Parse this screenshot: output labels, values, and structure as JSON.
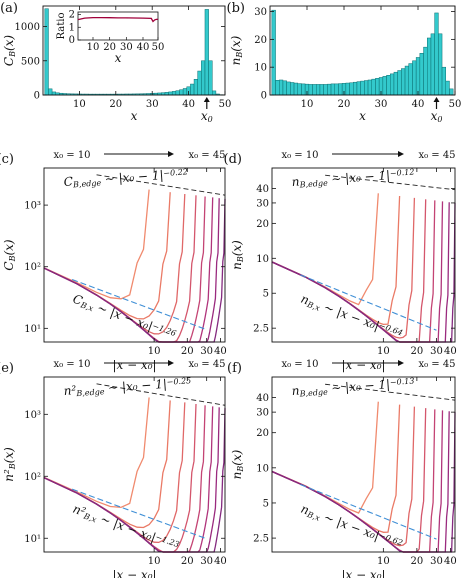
{
  "colors": {
    "bar_fill": "#33c9cc",
    "bar_stroke": "#0a6e70",
    "ratio_line": "#a0003a",
    "fit_line": "#3f8fd6",
    "edge_fit_line": "#222222",
    "curve_colors": [
      "#f08a6e",
      "#ea7a66",
      "#e06868",
      "#d4566c",
      "#c44474",
      "#b0347b",
      "#9a2a7e",
      "#842a7f"
    ]
  },
  "arrow_text": {
    "from": "x₀ = 10",
    "to": "x₀ = 45"
  },
  "chart_data": [
    {
      "panel": "(a)",
      "type": "bar",
      "ylabel": "C_B(x)",
      "xlabel": "x",
      "xlim": [
        0,
        50
      ],
      "ylim": [
        0,
        1300
      ],
      "xticks": [
        10,
        20,
        30,
        40,
        50
      ],
      "yticks": [
        0,
        500,
        1000
      ],
      "marker_label": "x₀",
      "marker_x": 45,
      "x": [
        1,
        2,
        3,
        4,
        5,
        6,
        7,
        8,
        9,
        10,
        11,
        12,
        13,
        14,
        15,
        16,
        17,
        18,
        19,
        20,
        21,
        22,
        23,
        24,
        25,
        26,
        27,
        28,
        29,
        30,
        31,
        32,
        33,
        34,
        35,
        36,
        37,
        38,
        39,
        40,
        41,
        42,
        43,
        44,
        45,
        46,
        47,
        48,
        49
      ],
      "values": [
        1260,
        90,
        45,
        32,
        26,
        22,
        19,
        17,
        16,
        15,
        14,
        14,
        13,
        13,
        13,
        13,
        13,
        13,
        13,
        13,
        14,
        14,
        15,
        15,
        16,
        17,
        18,
        20,
        22,
        24,
        27,
        30,
        34,
        39,
        45,
        53,
        63,
        77,
        95,
        120,
        160,
        230,
        350,
        500,
        1250,
        500,
        60,
        15,
        5
      ],
      "inset": {
        "type": "line",
        "ylabel": "Ratio",
        "xlabel": "x",
        "xlim": [
          1,
          49
        ],
        "ylim": [
          0,
          2.2
        ],
        "xticks": [
          10,
          20,
          30,
          40,
          50
        ],
        "yticks": [
          0,
          1,
          2
        ],
        "x": [
          1,
          5,
          10,
          15,
          20,
          25,
          30,
          35,
          40,
          45,
          46,
          47,
          48,
          49
        ],
        "values": [
          1.6,
          1.72,
          1.76,
          1.76,
          1.75,
          1.74,
          1.74,
          1.73,
          1.72,
          1.7,
          1.45,
          1.58,
          1.62,
          1.63
        ]
      }
    },
    {
      "panel": "(b)",
      "type": "bar",
      "ylabel": "n_B(x)",
      "xlabel": "x",
      "xlim": [
        0,
        50
      ],
      "ylim": [
        0,
        32
      ],
      "xticks": [
        10,
        20,
        30,
        40,
        50
      ],
      "yticks": [
        0,
        10,
        20,
        30
      ],
      "marker_label": "x₀",
      "marker_x": 45,
      "x": [
        1,
        2,
        3,
        4,
        5,
        6,
        7,
        8,
        9,
        10,
        11,
        12,
        13,
        14,
        15,
        16,
        17,
        18,
        19,
        20,
        21,
        22,
        23,
        24,
        25,
        26,
        27,
        28,
        29,
        30,
        31,
        32,
        33,
        34,
        35,
        36,
        37,
        38,
        39,
        40,
        41,
        42,
        43,
        44,
        45,
        46,
        47,
        48,
        49
      ],
      "values": [
        30.5,
        5.3,
        5.4,
        5.1,
        4.7,
        4.5,
        4.3,
        4.1,
        4.0,
        3.9,
        3.8,
        3.8,
        3.8,
        3.8,
        3.8,
        3.9,
        4.0,
        4.0,
        4.1,
        4.2,
        4.3,
        4.4,
        4.6,
        4.8,
        5.0,
        5.2,
        5.4,
        5.7,
        6.0,
        6.3,
        6.7,
        7.1,
        7.6,
        8.2,
        8.8,
        9.5,
        10.4,
        11.3,
        12.3,
        13.5,
        15.0,
        17.2,
        20.5,
        22.0,
        29.5,
        22.0,
        10.0,
        5.0,
        2.2
      ]
    },
    {
      "panel": "(c)",
      "type": "line",
      "scale": "loglog",
      "ylabel": "C_B(x)",
      "xlabel": "|x − x₀|",
      "xlim": [
        1,
        44
      ],
      "ylim": [
        6,
        4000
      ],
      "xticks": [
        10,
        20,
        30,
        40
      ],
      "yticks": [
        10,
        100,
        1000
      ],
      "ytick_labels": [
        "10¹",
        "10²",
        "10³"
      ],
      "x0_values": [
        10,
        15,
        20,
        25,
        30,
        35,
        40,
        45
      ],
      "peak": {
        "base": 1260,
        "power": -0.22
      },
      "edge": {
        "value": 1260,
        "power": -0.22
      },
      "bulk": {
        "amp": 95,
        "power": -1.26
      },
      "fit_edge": {
        "label": "C_{B,edge} ∼ |x₀ − 1|^{−0.22}",
        "x": [
          3,
          44
        ],
        "y": [
          3100,
          1450
        ]
      },
      "fit_bulk": {
        "label": "C_{B,x} ∼ |x − x₀|^{−1.26}",
        "x": [
          1.8,
          30
        ],
        "y": [
          62,
          9.5
        ]
      }
    },
    {
      "panel": "(d)",
      "type": "line",
      "scale": "loglog",
      "ylabel": "n_B(x)",
      "xlabel": "|x − x₀|",
      "xlim": [
        1,
        44
      ],
      "ylim": [
        1.9,
        60
      ],
      "xticks": [
        10,
        20,
        30,
        40
      ],
      "yticks": [
        2.5,
        5,
        10,
        20,
        30,
        40
      ],
      "ytick_labels": [
        "2.5",
        "5",
        "10",
        "20",
        "30",
        "40"
      ],
      "x0_values": [
        10,
        15,
        20,
        25,
        30,
        35,
        40,
        45
      ],
      "peak": {
        "base": 30,
        "power": -0.12
      },
      "edge": {
        "value": 30,
        "power": -0.12
      },
      "bulk": {
        "amp": 9.3,
        "power": -0.64
      },
      "fit_edge": {
        "label": "n_{B,edge} ∼ |x₀ − 1|^{−0.12}",
        "x": [
          3,
          44
        ],
        "y": [
          52,
          39
        ]
      },
      "fit_bulk": {
        "label": "n_{B,x} ∼ |x − x₀|^{−0.64}",
        "x": [
          1.8,
          30
        ],
        "y": [
          7.2,
          2.4
        ]
      }
    },
    {
      "panel": "(e)",
      "type": "line",
      "scale": "loglog",
      "ylabel": "n²_B(x)",
      "xlabel": "|x − x₀|",
      "xlim": [
        1,
        44
      ],
      "ylim": [
        6,
        4000
      ],
      "xticks": [
        10,
        20,
        30,
        40
      ],
      "yticks": [
        10,
        100,
        1000
      ],
      "ytick_labels": [
        "10¹",
        "10²",
        "10³"
      ],
      "x0_values": [
        10,
        15,
        20,
        25,
        30,
        35,
        40,
        45
      ],
      "peak": {
        "base": 1260,
        "power": -0.25
      },
      "edge": {
        "value": 1260,
        "power": -0.25
      },
      "bulk": {
        "amp": 95,
        "power": -1.23
      },
      "fit_edge": {
        "label": "n²_{B,edge} ∼ |x₀ − 1|^{−0.25}",
        "x": [
          3,
          44
        ],
        "y": [
          3100,
          1400
        ]
      },
      "fit_bulk": {
        "label": "n²_{B,x} ∼ |x − x₀|^{−1.23}",
        "x": [
          1.8,
          30
        ],
        "y": [
          62,
          9.8
        ]
      }
    },
    {
      "panel": "(f)",
      "type": "line",
      "scale": "loglog",
      "ylabel": "n_B(x)",
      "xlabel": "|x − x₀|",
      "xlim": [
        1,
        44
      ],
      "ylim": [
        1.9,
        60
      ],
      "xticks": [
        10,
        20,
        30,
        40
      ],
      "yticks": [
        2.5,
        5,
        10,
        20,
        30,
        40
      ],
      "ytick_labels": [
        "2.5",
        "5",
        "10",
        "20",
        "30",
        "40"
      ],
      "x0_values": [
        10,
        15,
        20,
        25,
        30,
        35,
        40,
        45
      ],
      "peak": {
        "base": 30,
        "power": -0.13
      },
      "edge": {
        "value": 30,
        "power": -0.13
      },
      "bulk": {
        "amp": 9.3,
        "power": -0.62
      },
      "fit_edge": {
        "label": "n_{B,edge} ∼ |x₀ − 1|^{−0.13}",
        "x": [
          3,
          44
        ],
        "y": [
          52,
          38
        ]
      },
      "fit_bulk": {
        "label": "n_{B,x} ∼ |x − x₀|^{−0.62}",
        "x": [
          1.8,
          30
        ],
        "y": [
          7.2,
          2.45
        ]
      }
    }
  ]
}
